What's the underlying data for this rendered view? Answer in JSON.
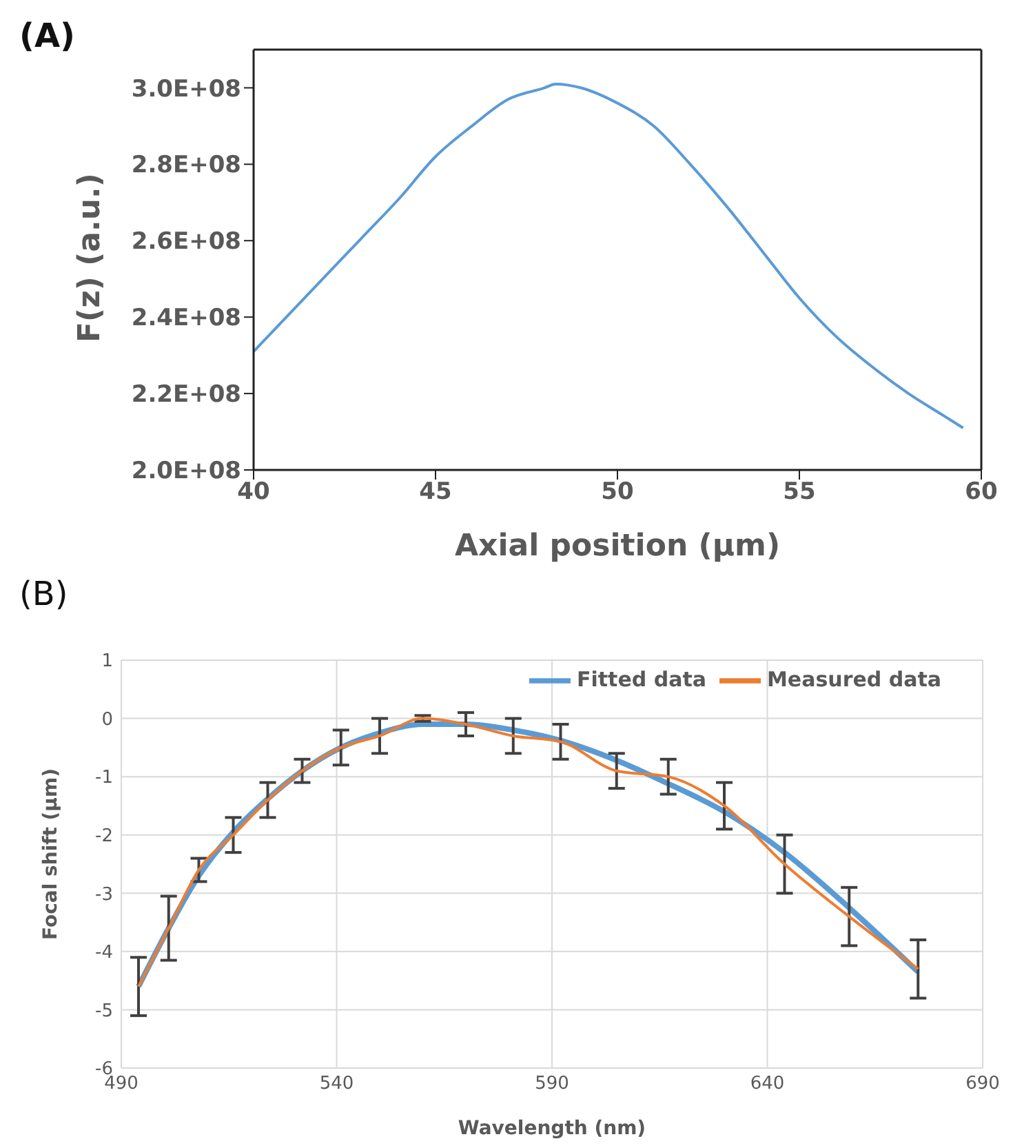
{
  "chart_data": [
    {
      "type": "line",
      "title": "(A)",
      "xlabel": "Axial position  (µm)",
      "ylabel": "F(z) (a.u.)",
      "x": [
        40,
        41,
        42,
        43,
        44,
        45,
        46,
        47,
        48,
        48.3,
        49,
        50,
        51,
        52,
        53,
        54,
        55,
        56,
        57,
        58,
        59,
        59.5
      ],
      "values": [
        231000000,
        241000000,
        251000000,
        261000000,
        271000000,
        282000000,
        290000000,
        297000000,
        300000000,
        301000000,
        300000000,
        296000000,
        290000000,
        280000000,
        269000000,
        257000000,
        245000000,
        235000000,
        227000000,
        220000000,
        214000000,
        211000000
      ],
      "color": "#5b9bd5",
      "xlim": [
        40,
        60
      ],
      "xticks": [
        40,
        45,
        50,
        55,
        60
      ],
      "ylim": [
        200000000,
        310000000
      ],
      "yticks": [
        {
          "value": 200000000,
          "label": "2.0E+08"
        },
        {
          "value": 220000000,
          "label": "2.2E+08"
        },
        {
          "value": 240000000,
          "label": "2.4E+08"
        },
        {
          "value": 260000000,
          "label": "2.6E+08"
        },
        {
          "value": 280000000,
          "label": "2.8E+08"
        },
        {
          "value": 300000000,
          "label": "3.0E+08"
        }
      ],
      "grid": false,
      "legend": false
    },
    {
      "type": "line",
      "title": "(B)",
      "xlabel": "Wavelength (nm)",
      "ylabel": "Focal shift (µm)",
      "x": [
        494,
        501,
        508,
        516,
        524,
        532,
        541,
        550,
        560,
        570,
        581,
        592,
        605,
        617,
        630,
        644,
        659,
        675
      ],
      "series": [
        {
          "name": "Fitted data",
          "color": "#5b9bd5",
          "values": [
            -4.6,
            -3.6,
            -2.7,
            -1.95,
            -1.38,
            -0.9,
            -0.5,
            -0.25,
            -0.1,
            -0.1,
            -0.2,
            -0.38,
            -0.72,
            -1.12,
            -1.6,
            -2.3,
            -3.25,
            -4.35
          ]
        },
        {
          "name": "Measured data",
          "color": "#ed7d31",
          "values": [
            -4.6,
            -3.6,
            -2.6,
            -2.0,
            -1.4,
            -0.9,
            -0.5,
            -0.3,
            0,
            -0.1,
            -0.3,
            -0.4,
            -0.9,
            -1.0,
            -1.5,
            -2.5,
            -3.4,
            -4.3
          ],
          "errors": [
            0.5,
            0.55,
            0.2,
            0.3,
            0.3,
            0.2,
            0.3,
            0.3,
            0.05,
            0.2,
            0.3,
            0.3,
            0.3,
            0.3,
            0.4,
            0.5,
            0.5,
            0.5
          ]
        }
      ],
      "xlim": [
        490,
        690
      ],
      "xticks": [
        490,
        540,
        590,
        640,
        690
      ],
      "ylim": [
        -6,
        1
      ],
      "yticks": [
        -6,
        -5,
        -4,
        -3,
        -2,
        -1,
        0,
        1
      ],
      "grid": true,
      "legend": "top right"
    }
  ]
}
